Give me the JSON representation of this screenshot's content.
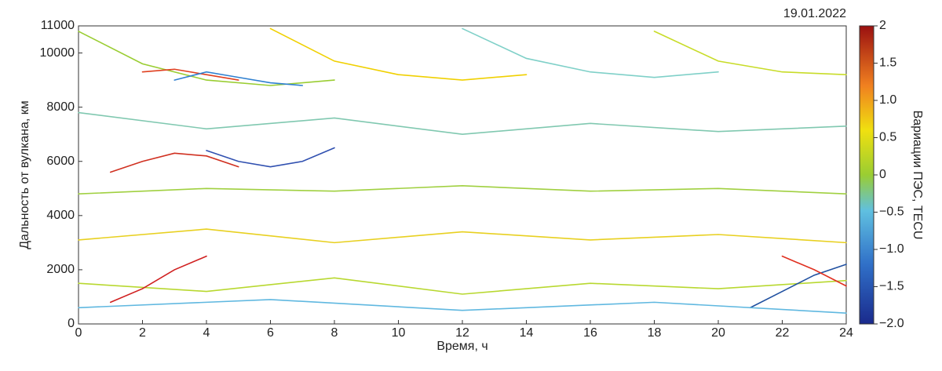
{
  "chart_data": {
    "type": "line",
    "date": "19.01.2022",
    "xlabel": "Время, ч",
    "ylabel": "Дальность от вулкана, км",
    "colorbar_label": "Вариации ПЭС, TECU",
    "xlim": [
      0,
      24
    ],
    "ylim": [
      0,
      11000
    ],
    "xticks": [
      0,
      2,
      4,
      6,
      8,
      10,
      12,
      14,
      16,
      18,
      20,
      22,
      24
    ],
    "yticks": [
      0,
      2000,
      4000,
      6000,
      8000,
      10000,
      11000
    ],
    "clim": [
      -2,
      2
    ],
    "cticks": [
      2,
      1.5,
      {
        "value": 1,
        "label": "1.0"
      },
      0.5,
      0,
      {
        "value": -0.5,
        "label": "−0.5"
      },
      {
        "value": -1,
        "label": "−1.0"
      },
      {
        "value": -1.5,
        "label": "−1.5"
      },
      {
        "value": -2,
        "label": "−2.0"
      }
    ],
    "series": [
      {
        "color": "#9acd32",
        "x": [
          0,
          2,
          4,
          6,
          8
        ],
        "y": [
          10800,
          9600,
          9000,
          8800,
          9000
        ]
      },
      {
        "color": "#f0d000",
        "x": [
          6,
          8,
          10,
          12,
          14
        ],
        "y": [
          10900,
          9700,
          9200,
          9000,
          9200
        ]
      },
      {
        "color": "#7fd0c8",
        "x": [
          12,
          14,
          16,
          18,
          20
        ],
        "y": [
          10900,
          9800,
          9300,
          9100,
          9300
        ]
      },
      {
        "color": "#c8dc28",
        "x": [
          18,
          20,
          22,
          24
        ],
        "y": [
          10800,
          9700,
          9300,
          9200
        ]
      },
      {
        "color": "#e04020",
        "x": [
          2,
          3,
          4,
          5
        ],
        "y": [
          9300,
          9400,
          9200,
          9000
        ]
      },
      {
        "color": "#3080d0",
        "x": [
          3,
          4,
          5,
          6,
          7
        ],
        "y": [
          9000,
          9300,
          9100,
          8900,
          8800
        ]
      },
      {
        "color": "#3050b0",
        "x": [
          4,
          5,
          6,
          7,
          8
        ],
        "y": [
          6400,
          6000,
          5800,
          6000,
          6500
        ]
      },
      {
        "color": "#d03020",
        "x": [
          1,
          2,
          3,
          4,
          5
        ],
        "y": [
          5600,
          6000,
          6300,
          6200,
          5800
        ]
      },
      {
        "color": "#a0d040",
        "x": [
          0,
          4,
          8,
          12,
          16,
          20,
          24
        ],
        "y": [
          4800,
          5000,
          4900,
          5100,
          4900,
          5000,
          4800
        ]
      },
      {
        "color": "#80c8b0",
        "x": [
          0,
          4,
          8,
          12,
          16,
          20,
          24
        ],
        "y": [
          7800,
          7200,
          7600,
          7000,
          7400,
          7100,
          7300
        ]
      },
      {
        "color": "#e8d020",
        "x": [
          0,
          4,
          8,
          12,
          16,
          20,
          24
        ],
        "y": [
          3100,
          3500,
          3000,
          3400,
          3100,
          3300,
          3000
        ]
      },
      {
        "color": "#b8d830",
        "x": [
          0,
          4,
          8,
          12,
          16,
          20,
          24
        ],
        "y": [
          1500,
          1200,
          1700,
          1100,
          1500,
          1300,
          1600
        ]
      },
      {
        "color": "#d02020",
        "x": [
          1,
          2,
          3,
          4
        ],
        "y": [
          800,
          1300,
          2000,
          2500
        ]
      },
      {
        "color": "#2050a0",
        "x": [
          21,
          22,
          23,
          24
        ],
        "y": [
          600,
          1200,
          1800,
          2200
        ]
      },
      {
        "color": "#e03020",
        "x": [
          22,
          23,
          24
        ],
        "y": [
          2500,
          2000,
          1400
        ]
      },
      {
        "color": "#60b8e0",
        "x": [
          0,
          6,
          12,
          18,
          24
        ],
        "y": [
          600,
          900,
          500,
          800,
          400
        ]
      }
    ]
  }
}
